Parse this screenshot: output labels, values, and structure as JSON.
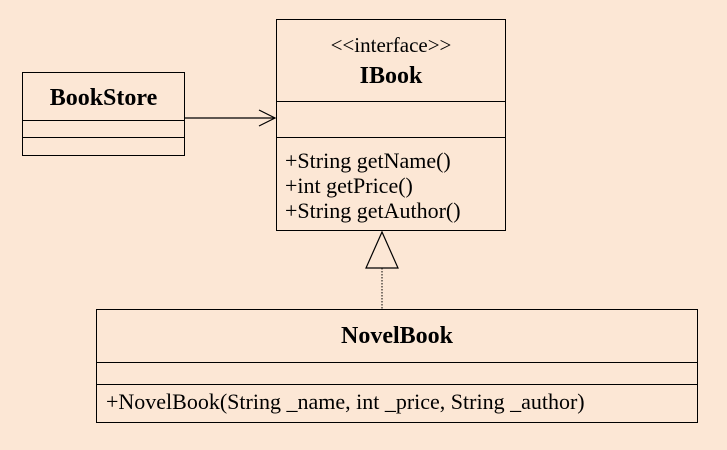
{
  "classes": {
    "bookstore": {
      "name": "BookStore"
    },
    "ibook": {
      "stereotype": "<<interface>>",
      "name": "IBook",
      "operations": [
        "+String getName()",
        "+int getPrice()",
        "+String getAuthor()"
      ]
    },
    "novelbook": {
      "name": "NovelBook",
      "operations": [
        "+NovelBook(String _name, int _price, String _author)"
      ]
    }
  },
  "colors": {
    "background": "#fce7d5",
    "line": "#000000"
  }
}
